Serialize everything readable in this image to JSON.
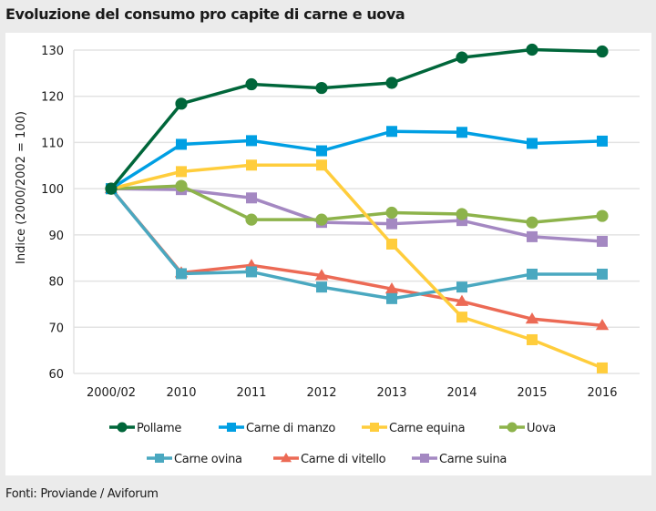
{
  "title": "Evoluzione del consumo pro capite di carne e uova",
  "footer": "Fonti: Proviande / Aviforum",
  "chart_data": {
    "type": "line",
    "title": "Evoluzione del consumo pro capite di carne e uova",
    "xlabel": "",
    "ylabel": "Indice (2000/2002 = 100)",
    "ylim": [
      60,
      130
    ],
    "yticks": [
      60,
      70,
      80,
      90,
      100,
      110,
      120,
      130
    ],
    "grid": true,
    "legend_position": "bottom",
    "categories": [
      "2000/02",
      "2010",
      "2011",
      "2012",
      "2013",
      "2014",
      "2015",
      "2016"
    ],
    "series": [
      {
        "name": "Pollame",
        "color": "#00663a",
        "marker": "circle",
        "values": [
          100,
          118.4,
          122.6,
          121.8,
          122.9,
          128.4,
          130.1,
          129.7
        ]
      },
      {
        "name": "Carne di manzo",
        "color": "#009fe3",
        "marker": "square",
        "values": [
          100,
          109.6,
          110.4,
          108.2,
          112.4,
          112.2,
          109.8,
          110.3
        ]
      },
      {
        "name": "Carne equina",
        "color": "#ffcd3c",
        "marker": "square",
        "values": [
          100,
          103.7,
          105.1,
          105.1,
          88.0,
          72.2,
          67.3,
          61.2
        ]
      },
      {
        "name": "Uova",
        "color": "#8db34b",
        "marker": "circle",
        "values": [
          100,
          100.6,
          93.3,
          93.3,
          94.8,
          94.5,
          92.7,
          94.1
        ]
      },
      {
        "name": "Carne ovina",
        "color": "#4aa8c0",
        "marker": "square",
        "values": [
          100,
          81.6,
          82.0,
          78.7,
          76.2,
          78.7,
          81.5,
          81.5
        ]
      },
      {
        "name": "Carne di vitello",
        "color": "#ec6a55",
        "marker": "triangle",
        "values": [
          100,
          81.8,
          83.4,
          81.2,
          78.3,
          75.6,
          71.8,
          70.4
        ]
      },
      {
        "name": "Carne suina",
        "color": "#a488c2",
        "marker": "square",
        "values": [
          100,
          99.8,
          98.0,
          92.7,
          92.4,
          93.1,
          89.6,
          88.6
        ]
      }
    ]
  }
}
